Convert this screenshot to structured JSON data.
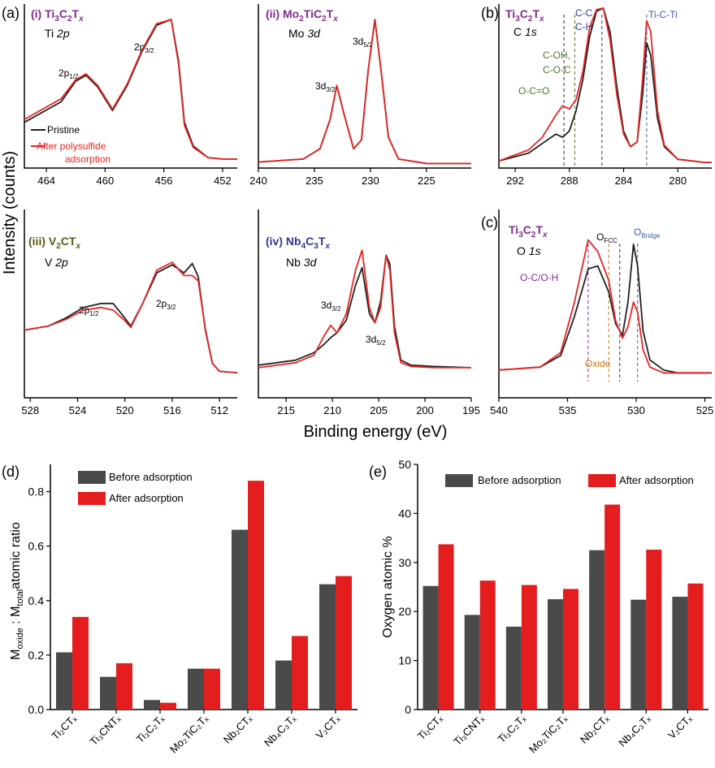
{
  "colors": {
    "pristine": "#222222",
    "after": "#e32624",
    "purple": "#7f2c8c",
    "olive": "#5a5a1a",
    "navy": "#2e3a8c",
    "green": "#4b7a2a",
    "orange": "#c07a10",
    "blue": "#3a5aa8",
    "bar_before": "#4a4a4a",
    "bar_after": "#e41e1e"
  },
  "common": {
    "x_title": "Binding energy (eV)",
    "y_title": "Intensity (counts)"
  },
  "chart_data": [
    {
      "id": "a-i",
      "type": "line",
      "panel": "(a)",
      "label": "(i) Ti₃C₂Tₓ",
      "sublabel": "Ti 2p",
      "peaks": [
        "2p₁/₂",
        "2p₃/₂"
      ],
      "xlim": [
        465.5,
        451
      ],
      "xticks": [
        "464",
        "460",
        "456",
        "452"
      ],
      "tick_values": [
        464,
        460,
        456,
        452
      ],
      "legend": [
        "Pristine",
        "After polysulfide",
        "adsorption"
      ],
      "series": [
        {
          "name": "Pristine",
          "x": [
            465.5,
            463,
            462,
            461.3,
            460.5,
            459.5,
            458.5,
            457.5,
            456.5,
            455.5,
            455,
            454.6,
            454,
            453,
            452,
            451
          ],
          "y": [
            0.3,
            0.44,
            0.58,
            0.62,
            0.54,
            0.38,
            0.55,
            0.78,
            0.96,
            1.0,
            0.72,
            0.3,
            0.14,
            0.06,
            0.05,
            0.05
          ]
        },
        {
          "name": "After polysulfide adsorption",
          "x": [
            465.5,
            463,
            462,
            461.3,
            460.5,
            459.5,
            458.5,
            457.5,
            456.5,
            455.5,
            455,
            454.6,
            454,
            453,
            452,
            451
          ],
          "y": [
            0.32,
            0.46,
            0.59,
            0.63,
            0.55,
            0.39,
            0.56,
            0.79,
            0.97,
            1.0,
            0.7,
            0.28,
            0.13,
            0.06,
            0.05,
            0.05
          ]
        }
      ]
    },
    {
      "id": "a-ii",
      "type": "line",
      "label": "(ii) Mo₂TiC₂Tₓ",
      "sublabel": "Mo 3d",
      "peaks": [
        "3d₃/₂",
        "3d₅/₂"
      ],
      "xlim": [
        240,
        221
      ],
      "xticks": [
        "240",
        "235",
        "230",
        "225"
      ],
      "tick_values": [
        240,
        235,
        230,
        225
      ],
      "series": [
        {
          "name": "Pristine",
          "x": [
            240,
            236,
            234.5,
            233.6,
            233,
            232.3,
            231.5,
            230.8,
            230.2,
            229.6,
            229,
            228.4,
            227.5,
            225,
            221
          ],
          "y": [
            0.03,
            0.05,
            0.12,
            0.32,
            0.55,
            0.34,
            0.12,
            0.18,
            0.65,
            1.0,
            0.62,
            0.2,
            0.05,
            0.02,
            0.02
          ]
        },
        {
          "name": "After polysulfide adsorption",
          "x": [
            240,
            236,
            234.5,
            233.6,
            233,
            232.3,
            231.5,
            230.8,
            230.2,
            229.6,
            229,
            228.4,
            227.5,
            225,
            221
          ],
          "y": [
            0.03,
            0.05,
            0.12,
            0.32,
            0.55,
            0.34,
            0.12,
            0.18,
            0.65,
            1.0,
            0.62,
            0.2,
            0.05,
            0.02,
            0.02
          ]
        }
      ]
    },
    {
      "id": "a-iii",
      "type": "line",
      "label": "(iii) V₂CTₓ",
      "sublabel": "V 2p",
      "peaks": [
        "2p₁/₂",
        "2p₃/₂"
      ],
      "xlim": [
        528.5,
        510.5
      ],
      "xticks": [
        "528",
        "524",
        "520",
        "516",
        "512"
      ],
      "tick_values": [
        528,
        524,
        520,
        516,
        512
      ],
      "series": [
        {
          "name": "Pristine",
          "x": [
            528.5,
            526.5,
            525,
            523.5,
            522,
            521,
            520,
            519.5,
            518.5,
            517.3,
            516,
            515,
            514.3,
            513.8,
            513.2,
            512.6,
            512,
            510.5
          ],
          "y": [
            0.35,
            0.38,
            0.44,
            0.52,
            0.55,
            0.55,
            0.44,
            0.38,
            0.55,
            0.78,
            0.84,
            0.78,
            0.85,
            0.75,
            0.35,
            0.1,
            0.04,
            0.03
          ]
        },
        {
          "name": "After polysulfide adsorption",
          "x": [
            528.5,
            526.5,
            525,
            523.5,
            522,
            521,
            520,
            519.5,
            518.5,
            517.3,
            516,
            515,
            514.3,
            513.8,
            513.2,
            512.6,
            512,
            510.5
          ],
          "y": [
            0.35,
            0.38,
            0.43,
            0.5,
            0.52,
            0.5,
            0.42,
            0.37,
            0.55,
            0.8,
            0.86,
            0.76,
            0.76,
            0.72,
            0.36,
            0.1,
            0.04,
            0.03
          ]
        }
      ]
    },
    {
      "id": "a-iv",
      "type": "line",
      "label": "(iv) Nb₄C₃Tₓ",
      "sublabel": "Nb 3d",
      "peaks": [
        "3d₃/₂",
        "3d₅/₂"
      ],
      "xlim": [
        218,
        195
      ],
      "xticks": [
        "215",
        "210",
        "205",
        "200",
        "195"
      ],
      "tick_values": [
        215,
        210,
        205,
        200,
        195
      ],
      "series": [
        {
          "name": "Pristine",
          "x": [
            218,
            214,
            212,
            211,
            210.2,
            209.5,
            208.5,
            207.5,
            206.8,
            206,
            205.4,
            204.8,
            204.2,
            203.8,
            203.3,
            202.6,
            201.5,
            199,
            195
          ],
          "y": [
            0.04,
            0.08,
            0.14,
            0.2,
            0.26,
            0.3,
            0.4,
            0.68,
            0.82,
            0.45,
            0.38,
            0.55,
            0.92,
            0.85,
            0.35,
            0.08,
            0.04,
            0.03,
            0.02
          ]
        },
        {
          "name": "After polysulfide adsorption",
          "x": [
            218,
            214,
            212,
            211,
            210.2,
            209.5,
            208.5,
            207.5,
            206.8,
            206,
            205.4,
            204.8,
            204.2,
            203.8,
            203.3,
            202.6,
            201.5,
            199,
            195
          ],
          "y": [
            0.02,
            0.06,
            0.12,
            0.26,
            0.36,
            0.3,
            0.45,
            0.8,
            0.96,
            0.5,
            0.38,
            0.5,
            0.92,
            0.8,
            0.3,
            0.06,
            0.03,
            0.02,
            0.02
          ]
        }
      ]
    },
    {
      "id": "b",
      "type": "line",
      "panel": "(b)",
      "label": "Ti₃C₂Tₓ",
      "sublabel": "C 1s",
      "annotations": [
        "C-C,",
        "C-H",
        "Ti-C-Ti",
        "C-OH,",
        "C-O-C",
        "O-C=O"
      ],
      "xlim": [
        293.2,
        277.5
      ],
      "xticks": [
        "292",
        "288",
        "284",
        "280"
      ],
      "tick_values": [
        292,
        288,
        284,
        280
      ],
      "series": [
        {
          "name": "Pristine",
          "x": [
            293.2,
            291,
            290,
            289,
            288.5,
            288,
            287.5,
            287,
            286.5,
            286,
            285.5,
            285,
            284.5,
            284,
            283.5,
            283,
            282.6,
            282.3,
            282,
            281.5,
            281,
            280,
            278,
            277.5
          ],
          "y": [
            0.03,
            0.08,
            0.14,
            0.2,
            0.18,
            0.22,
            0.35,
            0.55,
            0.82,
            0.98,
            1.0,
            0.85,
            0.5,
            0.22,
            0.12,
            0.15,
            0.45,
            0.78,
            0.7,
            0.3,
            0.12,
            0.04,
            0.02,
            0.02
          ]
        },
        {
          "name": "After polysulfide adsorption",
          "x": [
            293.2,
            291,
            290,
            289,
            288.5,
            288,
            287.5,
            287,
            286.5,
            286,
            285.5,
            285,
            284.5,
            284,
            283.5,
            283,
            282.6,
            282.3,
            282,
            281.5,
            281,
            280,
            278,
            277.5
          ],
          "y": [
            0.03,
            0.1,
            0.18,
            0.32,
            0.38,
            0.36,
            0.42,
            0.6,
            0.88,
            0.99,
            1.0,
            0.8,
            0.45,
            0.2,
            0.12,
            0.15,
            0.55,
            0.92,
            0.85,
            0.35,
            0.13,
            0.04,
            0.02,
            0.02
          ]
        }
      ]
    },
    {
      "id": "c",
      "type": "line",
      "panel": "(c)",
      "label": "Ti₃C₂Tₓ",
      "sublabel": "O 1s",
      "annotations": [
        "O-C/O-H",
        "O",
        "FCC",
        "O",
        "Bridge",
        "Oxide"
      ],
      "xlim": [
        540,
        524.5
      ],
      "xticks": [
        "540",
        "535",
        "530",
        "525"
      ],
      "tick_values": [
        540,
        535,
        530,
        525
      ],
      "series": [
        {
          "name": "Pristine",
          "x": [
            540,
            537,
            535.5,
            534.5,
            533.5,
            532.8,
            532,
            531.5,
            531,
            530.6,
            530.2,
            529.9,
            529.5,
            529,
            528,
            527,
            524.5
          ],
          "y": [
            0.08,
            0.1,
            0.18,
            0.45,
            0.78,
            0.8,
            0.62,
            0.4,
            0.32,
            0.55,
            0.95,
            0.8,
            0.35,
            0.15,
            0.08,
            0.06,
            0.06
          ]
        },
        {
          "name": "After polysulfide adsorption",
          "x": [
            540,
            537,
            535.5,
            534.5,
            533.5,
            532.8,
            532,
            531.5,
            531,
            530.6,
            530.2,
            529.9,
            529.5,
            529,
            528,
            527,
            524.5
          ],
          "y": [
            0.08,
            0.1,
            0.2,
            0.55,
            0.98,
            0.9,
            0.7,
            0.42,
            0.3,
            0.38,
            0.55,
            0.48,
            0.22,
            0.1,
            0.06,
            0.06,
            0.06
          ]
        }
      ]
    },
    {
      "id": "d",
      "type": "bar",
      "panel": "(d)",
      "categories": [
        "Ti₂CTₓ",
        "Ti₃CNTₓ",
        "Ti₃C₂Tₓ",
        "Mo₂TiC₂Tₓ",
        "Nb₂CTₓ",
        "Nb₄C₃Tₓ",
        "V₂CTₓ"
      ],
      "series": [
        {
          "name": "Before adsorption",
          "values": [
            0.21,
            0.12,
            0.035,
            0.15,
            0.66,
            0.18,
            0.46
          ]
        },
        {
          "name": "After adsorption",
          "values": [
            0.34,
            0.17,
            0.025,
            0.15,
            0.84,
            0.27,
            0.49
          ]
        }
      ],
      "ylabel": "Mₒₓᵢₔₑ : Mₜₒₜₐₗ atomic ratio",
      "ylim": [
        0,
        0.9
      ],
      "yticks": [
        "0.0",
        "0.2",
        "0.4",
        "0.6",
        "0.8"
      ],
      "ytick_values": [
        0,
        0.2,
        0.4,
        0.6,
        0.8
      ]
    },
    {
      "id": "e",
      "type": "bar",
      "panel": "(e)",
      "categories": [
        "Ti₂CTₓ",
        "Ti₃CNTₓ",
        "Ti₃C₂Tₓ",
        "Mo₂TiC₂Tₓ",
        "Nb₂CTₓ",
        "Nb₄C₃Tₓ",
        "V₂CTₓ"
      ],
      "series": [
        {
          "name": "Before adsorption",
          "values": [
            25.2,
            19.3,
            16.9,
            22.5,
            32.5,
            22.4,
            23.0
          ]
        },
        {
          "name": "After adsorption",
          "values": [
            33.7,
            26.3,
            25.4,
            24.6,
            41.8,
            32.6,
            25.7
          ]
        }
      ],
      "ylabel": "Oxygen atomic %",
      "ylim": [
        0,
        50
      ],
      "yticks": [
        "0",
        "10",
        "20",
        "30",
        "40",
        "50"
      ],
      "ytick_values": [
        0,
        10,
        20,
        30,
        40,
        50
      ]
    }
  ]
}
